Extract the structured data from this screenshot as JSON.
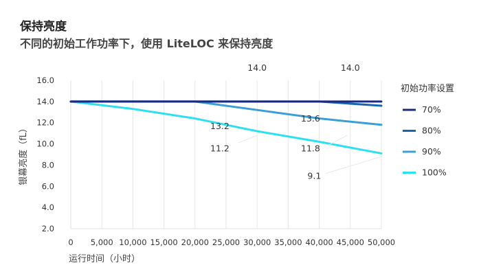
{
  "title": "保持亮度",
  "subtitle": "不同的初始工作功率下，使用 LiteLOC 来保持亮度",
  "chart_data": {
    "type": "line",
    "xlabel": "运行时间（小时）",
    "ylabel": "银幕亮度（fL）",
    "xlim": [
      0,
      50000
    ],
    "ylim": [
      2,
      16
    ],
    "x_ticks": [
      0,
      5000,
      10000,
      15000,
      20000,
      25000,
      30000,
      35000,
      40000,
      45000,
      50000
    ],
    "x_tick_labels": [
      "0",
      "5,000",
      "10,000",
      "15,000",
      "20,000",
      "25,000",
      "30,000",
      "35,000",
      "40,000",
      "45,000",
      "50,000"
    ],
    "y_ticks": [
      2,
      4,
      6,
      8,
      10,
      12,
      14,
      16
    ],
    "y_tick_labels": [
      "2.0",
      "4.0",
      "6.0",
      "8.0",
      "10.0",
      "12.0",
      "14.0",
      "16.0"
    ],
    "grid": "vertical",
    "legend_title": "初始功率设置",
    "legend_position": "right",
    "series": [
      {
        "name": "70%",
        "color": "#1b2a7e",
        "x": [
          0,
          20000,
          50000
        ],
        "y": [
          14.0,
          14.0,
          14.0
        ]
      },
      {
        "name": "80%",
        "color": "#1565b0",
        "x": [
          0,
          20000,
          40000,
          50000
        ],
        "y": [
          14.0,
          14.0,
          14.0,
          13.6
        ]
      },
      {
        "name": "90%",
        "color": "#3a9fd8",
        "x": [
          0,
          20000,
          30000,
          40000,
          50000
        ],
        "y": [
          14.0,
          14.0,
          13.2,
          12.4,
          11.8
        ]
      },
      {
        "name": "100%",
        "color": "#2de0f0",
        "x": [
          0,
          10000,
          20000,
          30000,
          40000,
          50000
        ],
        "y": [
          14.0,
          13.3,
          12.4,
          11.2,
          10.2,
          9.1
        ]
      }
    ],
    "annotations": [
      {
        "text": "14.0",
        "x": 30000,
        "y": 16.9
      },
      {
        "text": "14.0",
        "x": 45000,
        "y": 16.9
      },
      {
        "text": "13.2",
        "x": 24000,
        "y": 11.4
      },
      {
        "text": "11.2",
        "x": 24000,
        "y": 9.3
      },
      {
        "text": "13.6",
        "x": 38600,
        "y": 12.1
      },
      {
        "text": "11.8",
        "x": 38600,
        "y": 9.3
      },
      {
        "text": "9.1",
        "x": 39200,
        "y": 6.7
      }
    ]
  }
}
